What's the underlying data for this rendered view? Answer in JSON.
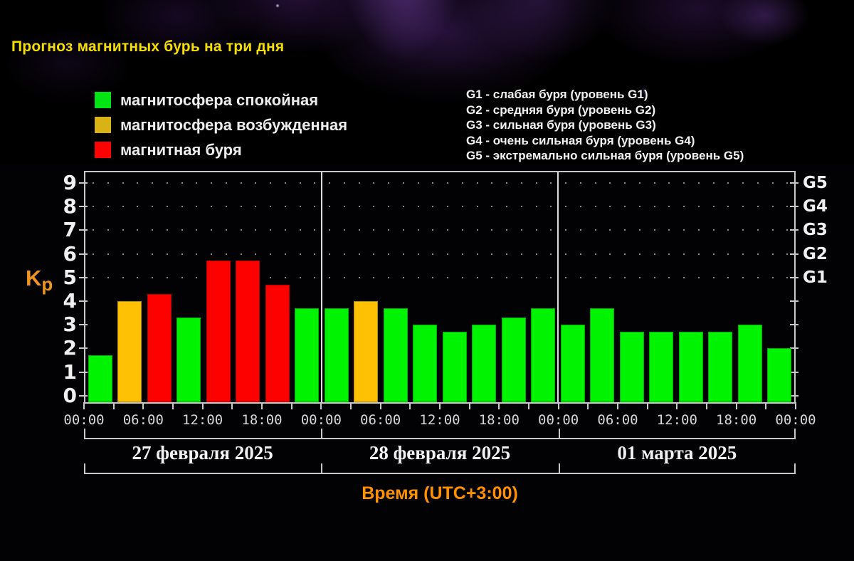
{
  "title": "Прогноз магнитных бурь на три дня",
  "legend": {
    "items": [
      {
        "label": "магнитосфера спокойная",
        "status": "quiet",
        "color": "#00e414"
      },
      {
        "label": "магнитосфера возбужденная",
        "status": "active",
        "color": "#d9b216"
      },
      {
        "label": "магнитная буря",
        "status": "storm",
        "color": "#fe0100"
      }
    ]
  },
  "storm_levels": [
    "G1 - слабая буря (уровень G1)",
    "G2 - средняя буря (уровень G2)",
    "G3 - сильная буря (уровень G3)",
    "G4 - очень сильная буря (уровень G4)",
    "G5 - экстремально сильная буря (уровень G5)"
  ],
  "chart_data": {
    "type": "bar",
    "title": "Прогноз магнитных бурь на три дня",
    "ylabel": "Kp",
    "xlabel": "Время (UTC+3:00)",
    "ylim": [
      0,
      9
    ],
    "y_ticks": [
      0,
      1,
      2,
      3,
      4,
      5,
      6,
      7,
      8,
      9
    ],
    "right_axis": [
      {
        "kp": 5,
        "label": "G1"
      },
      {
        "kp": 6,
        "label": "G2"
      },
      {
        "kp": 7,
        "label": "G3"
      },
      {
        "kp": 8,
        "label": "G4"
      },
      {
        "kp": 9,
        "label": "G5"
      }
    ],
    "grid_dot_rows_kp": [
      5,
      6,
      7,
      8,
      9
    ],
    "bar_interval_hours": 3,
    "time_tick_labels": [
      "00:00",
      "06:00",
      "12:00",
      "18:00",
      "00:00",
      "06:00",
      "12:00",
      "18:00",
      "00:00",
      "06:00",
      "12:00",
      "18:00",
      "00:00"
    ],
    "status_colors": {
      "quiet": "#00f300",
      "active": "#ffc103",
      "storm": "#fd0000"
    },
    "days": [
      {
        "date": "27 февраля 2025",
        "values": [
          1.7,
          4.0,
          4.3,
          3.3,
          5.7,
          5.7,
          4.7,
          3.7
        ],
        "statuses": [
          "quiet",
          "active",
          "storm",
          "quiet",
          "storm",
          "storm",
          "storm",
          "quiet"
        ]
      },
      {
        "date": "28 февраля 2025",
        "values": [
          3.7,
          4.0,
          3.7,
          3.0,
          2.7,
          3.0,
          3.3,
          3.7
        ],
        "statuses": [
          "quiet",
          "active",
          "quiet",
          "quiet",
          "quiet",
          "quiet",
          "quiet",
          "quiet"
        ]
      },
      {
        "date": "01 марта 2025",
        "values": [
          3.0,
          3.7,
          2.7,
          2.7,
          2.7,
          2.7,
          3.0,
          2.0
        ],
        "statuses": [
          "quiet",
          "quiet",
          "quiet",
          "quiet",
          "quiet",
          "quiet",
          "quiet",
          "quiet"
        ]
      }
    ]
  }
}
